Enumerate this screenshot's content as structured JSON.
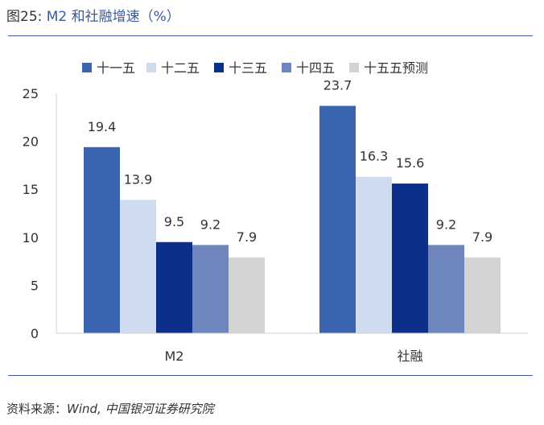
{
  "figure": {
    "title_num": "图25:",
    "title_text": "M2 和社融增速（%）",
    "source_label": "资料来源：",
    "source_text": "Wind,  中国银河证券研究院"
  },
  "chart_data": {
    "type": "bar",
    "categories": [
      "M2",
      "社融"
    ],
    "series": [
      {
        "name": "十一五",
        "color": "#3b64b0",
        "values": [
          19.4,
          23.7
        ]
      },
      {
        "name": "十二五",
        "color": "#cfdcf0",
        "values": [
          13.9,
          16.3
        ]
      },
      {
        "name": "十三五",
        "color": "#0d2f8c",
        "values": [
          9.5,
          15.6
        ]
      },
      {
        "name": "十四五",
        "color": "#6e86bd",
        "values": [
          9.2,
          9.2
        ]
      },
      {
        "name": "十五五预测",
        "color": "#d4d3d3",
        "values": [
          7.9,
          7.9
        ]
      }
    ],
    "ylim": [
      0,
      25
    ],
    "yticks": [
      0,
      5,
      10,
      15,
      20,
      25
    ],
    "legend_position": "top",
    "grid": false
  }
}
